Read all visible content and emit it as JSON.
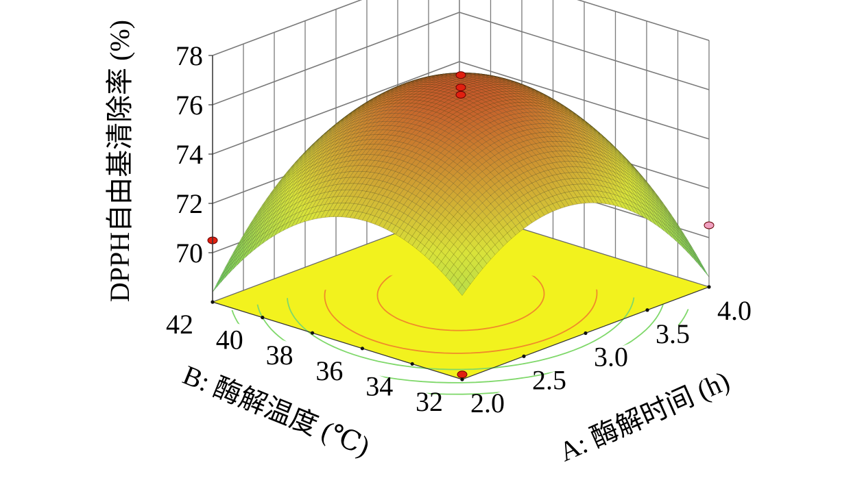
{
  "chart_data": {
    "type": "surface",
    "title": "",
    "x_axis": {
      "label": "A: 酶解时间 (h)",
      "range": [
        2.0,
        4.0
      ],
      "ticks": [
        "2.0",
        "2.5",
        "3.0",
        "3.5",
        "4.0"
      ]
    },
    "y_axis": {
      "label": "B: 酶解温度 (℃)",
      "range": [
        32,
        42
      ],
      "ticks": [
        "32",
        "34",
        "36",
        "38",
        "40",
        "42"
      ]
    },
    "z_axis": {
      "label": "DPPH自由基清除率 (%)",
      "range": [
        68,
        78
      ],
      "ticks": [
        "70",
        "72",
        "74",
        "76",
        "78"
      ]
    },
    "surface": {
      "peak": {
        "A": 3.0,
        "B": 37.0,
        "value": 76.4
      },
      "corners": [
        {
          "A": 2.0,
          "B": 32,
          "value": 68.2
        },
        {
          "A": 2.0,
          "B": 42,
          "value": 70.5
        },
        {
          "A": 4.0,
          "B": 32,
          "value": 70.5
        },
        {
          "A": 4.0,
          "B": 42,
          "value": 68.0
        }
      ]
    },
    "design_points": [
      {
        "A": 3.0,
        "B": 37,
        "value": 76.9,
        "color": "#e02010"
      },
      {
        "A": 3.0,
        "B": 37,
        "value": 76.4,
        "color": "#e02010"
      },
      {
        "A": 3.0,
        "B": 37,
        "value": 76.1,
        "color": "#e02010"
      },
      {
        "A": 2.0,
        "B": 32,
        "value": 68.2,
        "color": "#e02010"
      },
      {
        "A": 2.0,
        "B": 42,
        "value": 70.5,
        "color": "#e02010"
      },
      {
        "A": 4.0,
        "B": 32,
        "value": 70.5,
        "color": "#f0a0c0"
      }
    ],
    "grid": true,
    "contour_floor": true,
    "colors": {
      "surface_low": "#5fcf6f",
      "surface_mid": "#d9e23a",
      "surface_high": "#c4562a",
      "floor": "#f2f21e",
      "contour_outer": "#7fd86a",
      "contour_inner": "#f08a2a"
    }
  }
}
